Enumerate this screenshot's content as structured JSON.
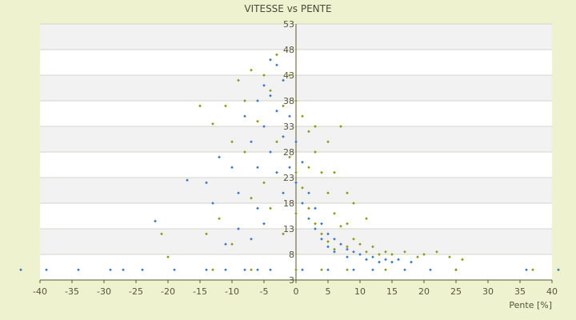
{
  "chart_data": {
    "type": "scatter",
    "title": "VITESSE vs PENTE",
    "xlabel": "Pente [%]",
    "ylabel": "",
    "xlim": [
      -40,
      40
    ],
    "ylim": [
      3,
      53
    ],
    "x_ticks": [
      -40,
      -35,
      -30,
      -25,
      -20,
      -15,
      -10,
      -5,
      0,
      5,
      10,
      15,
      20,
      25,
      30,
      35,
      40
    ],
    "y_ticks": [
      3,
      8,
      13,
      18,
      23,
      28,
      33,
      38,
      43,
      48,
      53
    ],
    "grid": true,
    "legend": "none",
    "series": [
      {
        "color": "#3a78c8",
        "points": [
          [
            -43,
            5.0
          ],
          [
            -39,
            5.0
          ],
          [
            -34,
            5.0
          ],
          [
            -29,
            5.0
          ],
          [
            -27,
            5.0
          ],
          [
            -24,
            5.0
          ],
          [
            -19,
            5.0
          ],
          [
            -14,
            5.0
          ],
          [
            -11,
            5.0
          ],
          [
            -8,
            5.0
          ],
          [
            -6,
            5.0
          ],
          [
            -4,
            5.0
          ],
          [
            1,
            5.0
          ],
          [
            5,
            5.0
          ],
          [
            9,
            5.0
          ],
          [
            12,
            5.0
          ],
          [
            17,
            5.0
          ],
          [
            21,
            5.0
          ],
          [
            25,
            5.0
          ],
          [
            36,
            5.0
          ],
          [
            41,
            5.0
          ],
          [
            -17,
            22.5
          ],
          [
            -14,
            22.0
          ],
          [
            -12,
            27.0
          ],
          [
            -10,
            25.0
          ],
          [
            -9,
            20.0
          ],
          [
            -8,
            35.0
          ],
          [
            -7,
            30.0
          ],
          [
            -6,
            38.0
          ],
          [
            -6,
            25.0
          ],
          [
            -5,
            41.0
          ],
          [
            -5,
            33.0
          ],
          [
            -4,
            46.0
          ],
          [
            -4,
            39.0
          ],
          [
            -4,
            28.0
          ],
          [
            -3,
            45.0
          ],
          [
            -3,
            36.0
          ],
          [
            -3,
            24.0
          ],
          [
            -2,
            42.0
          ],
          [
            -2,
            31.0
          ],
          [
            -2,
            20.0
          ],
          [
            -1,
            35.0
          ],
          [
            -1,
            25.0
          ],
          [
            0,
            30.0
          ],
          [
            0,
            22.0
          ],
          [
            1,
            26.0
          ],
          [
            1,
            18.0
          ],
          [
            2,
            20.0
          ],
          [
            2,
            15.0
          ],
          [
            3,
            17.0
          ],
          [
            3,
            13.0
          ],
          [
            4,
            14.0
          ],
          [
            4,
            11.0
          ],
          [
            5,
            12.0
          ],
          [
            5,
            9.5
          ],
          [
            6,
            11.0
          ],
          [
            6,
            8.5
          ],
          [
            7,
            10.0
          ],
          [
            8,
            9.0
          ],
          [
            8,
            7.5
          ],
          [
            9,
            8.5
          ],
          [
            10,
            8.0
          ],
          [
            11,
            7.0
          ],
          [
            12,
            7.5
          ],
          [
            13,
            6.5
          ],
          [
            14,
            7.0
          ],
          [
            15,
            6.5
          ],
          [
            16,
            7.0
          ],
          [
            18,
            6.5
          ],
          [
            -22,
            14.5
          ],
          [
            -13,
            18.0
          ],
          [
            -11,
            10.0
          ],
          [
            -9,
            13.0
          ],
          [
            -7,
            11.0
          ],
          [
            -6,
            17.0
          ],
          [
            -5,
            14.0
          ]
        ]
      },
      {
        "color": "#8a9a1c",
        "points": [
          [
            -15,
            37.0
          ],
          [
            -13,
            33.5
          ],
          [
            -11,
            37.0
          ],
          [
            -10,
            30.0
          ],
          [
            -9,
            42.0
          ],
          [
            -8,
            38.0
          ],
          [
            -8,
            28.0
          ],
          [
            -7,
            44.0
          ],
          [
            -6,
            34.0
          ],
          [
            -5,
            43.0
          ],
          [
            -4,
            40.0
          ],
          [
            -3,
            47.0
          ],
          [
            -3,
            30.0
          ],
          [
            -2,
            37.0
          ],
          [
            -1,
            43.0
          ],
          [
            -1,
            27.0
          ],
          [
            0,
            38.0
          ],
          [
            0,
            24.0
          ],
          [
            1,
            35.0
          ],
          [
            1,
            21.0
          ],
          [
            2,
            32.0
          ],
          [
            2,
            17.0
          ],
          [
            3,
            28.0
          ],
          [
            3,
            14.0
          ],
          [
            4,
            24.0
          ],
          [
            4,
            12.0
          ],
          [
            5,
            20.0
          ],
          [
            5,
            10.5
          ],
          [
            6,
            16.0
          ],
          [
            6,
            9.0
          ],
          [
            7,
            13.5
          ],
          [
            8,
            14.0
          ],
          [
            8,
            9.5
          ],
          [
            9,
            11.0
          ],
          [
            10,
            10.0
          ],
          [
            11,
            8.5
          ],
          [
            12,
            9.5
          ],
          [
            13,
            8.0
          ],
          [
            14,
            8.5
          ],
          [
            15,
            8.0
          ],
          [
            17,
            8.5
          ],
          [
            19,
            7.5
          ],
          [
            20,
            8.0
          ],
          [
            22,
            8.5
          ],
          [
            24,
            7.5
          ],
          [
            26,
            7.0
          ],
          [
            37,
            5.0
          ],
          [
            -21,
            12.0
          ],
          [
            -20,
            7.5
          ],
          [
            -14,
            12.0
          ],
          [
            -12,
            15.0
          ],
          [
            -10,
            10.0
          ],
          [
            -7,
            19.0
          ],
          [
            -5,
            22.0
          ],
          [
            -4,
            17.0
          ],
          [
            -2,
            12.0
          ],
          [
            0,
            16.0
          ],
          [
            2,
            25.0
          ],
          [
            3,
            33.0
          ],
          [
            5,
            30.0
          ],
          [
            6,
            24.0
          ],
          [
            7,
            33.0
          ],
          [
            8,
            20.0
          ],
          [
            9,
            18.0
          ],
          [
            11,
            15.0
          ],
          [
            -13,
            5.0
          ],
          [
            -7,
            5.0
          ],
          [
            0,
            5.0
          ],
          [
            4,
            5.0
          ],
          [
            8,
            5.0
          ],
          [
            14,
            5.0
          ],
          [
            25,
            5.0
          ]
        ]
      }
    ]
  }
}
